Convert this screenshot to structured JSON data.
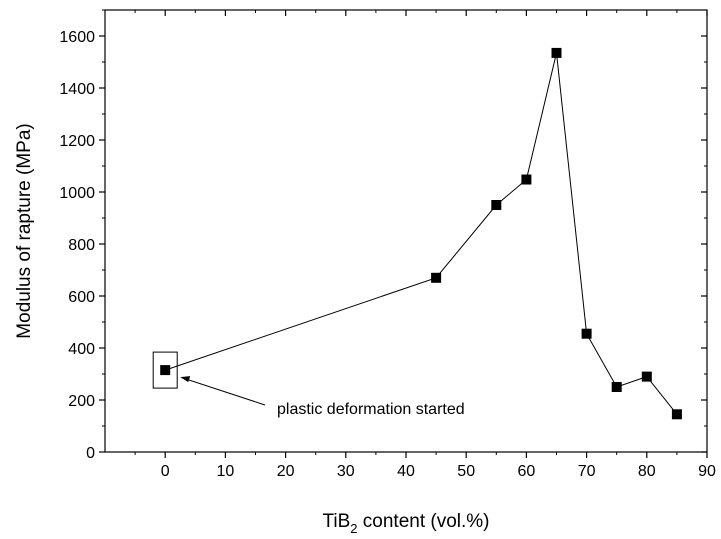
{
  "chart_data": {
    "type": "line",
    "title": "",
    "xlabel": {
      "main": "TiB",
      "subscript": "2",
      "rest": " content (vol.%)"
    },
    "ylabel": "Modulus of rapture (MPa)",
    "xlim": [
      -10,
      90
    ],
    "ylim": [
      0,
      1700
    ],
    "x_ticks": [
      0,
      10,
      20,
      30,
      40,
      50,
      60,
      70,
      80,
      90
    ],
    "y_ticks": [
      0,
      200,
      400,
      600,
      800,
      1000,
      1200,
      1400,
      1600
    ],
    "series": [
      {
        "x": [
          0,
          45,
          55,
          60,
          65,
          70,
          75,
          80,
          85
        ],
        "y": [
          315,
          670,
          950,
          1048,
          1535,
          455,
          250,
          290,
          145
        ]
      }
    ],
    "annotations": [
      {
        "text": "plastic deformation started",
        "point_x": 0,
        "point_y": 315
      }
    ],
    "grid": false,
    "legend": "none",
    "colors": {
      "line": "#000000",
      "marker": "#000000"
    }
  }
}
